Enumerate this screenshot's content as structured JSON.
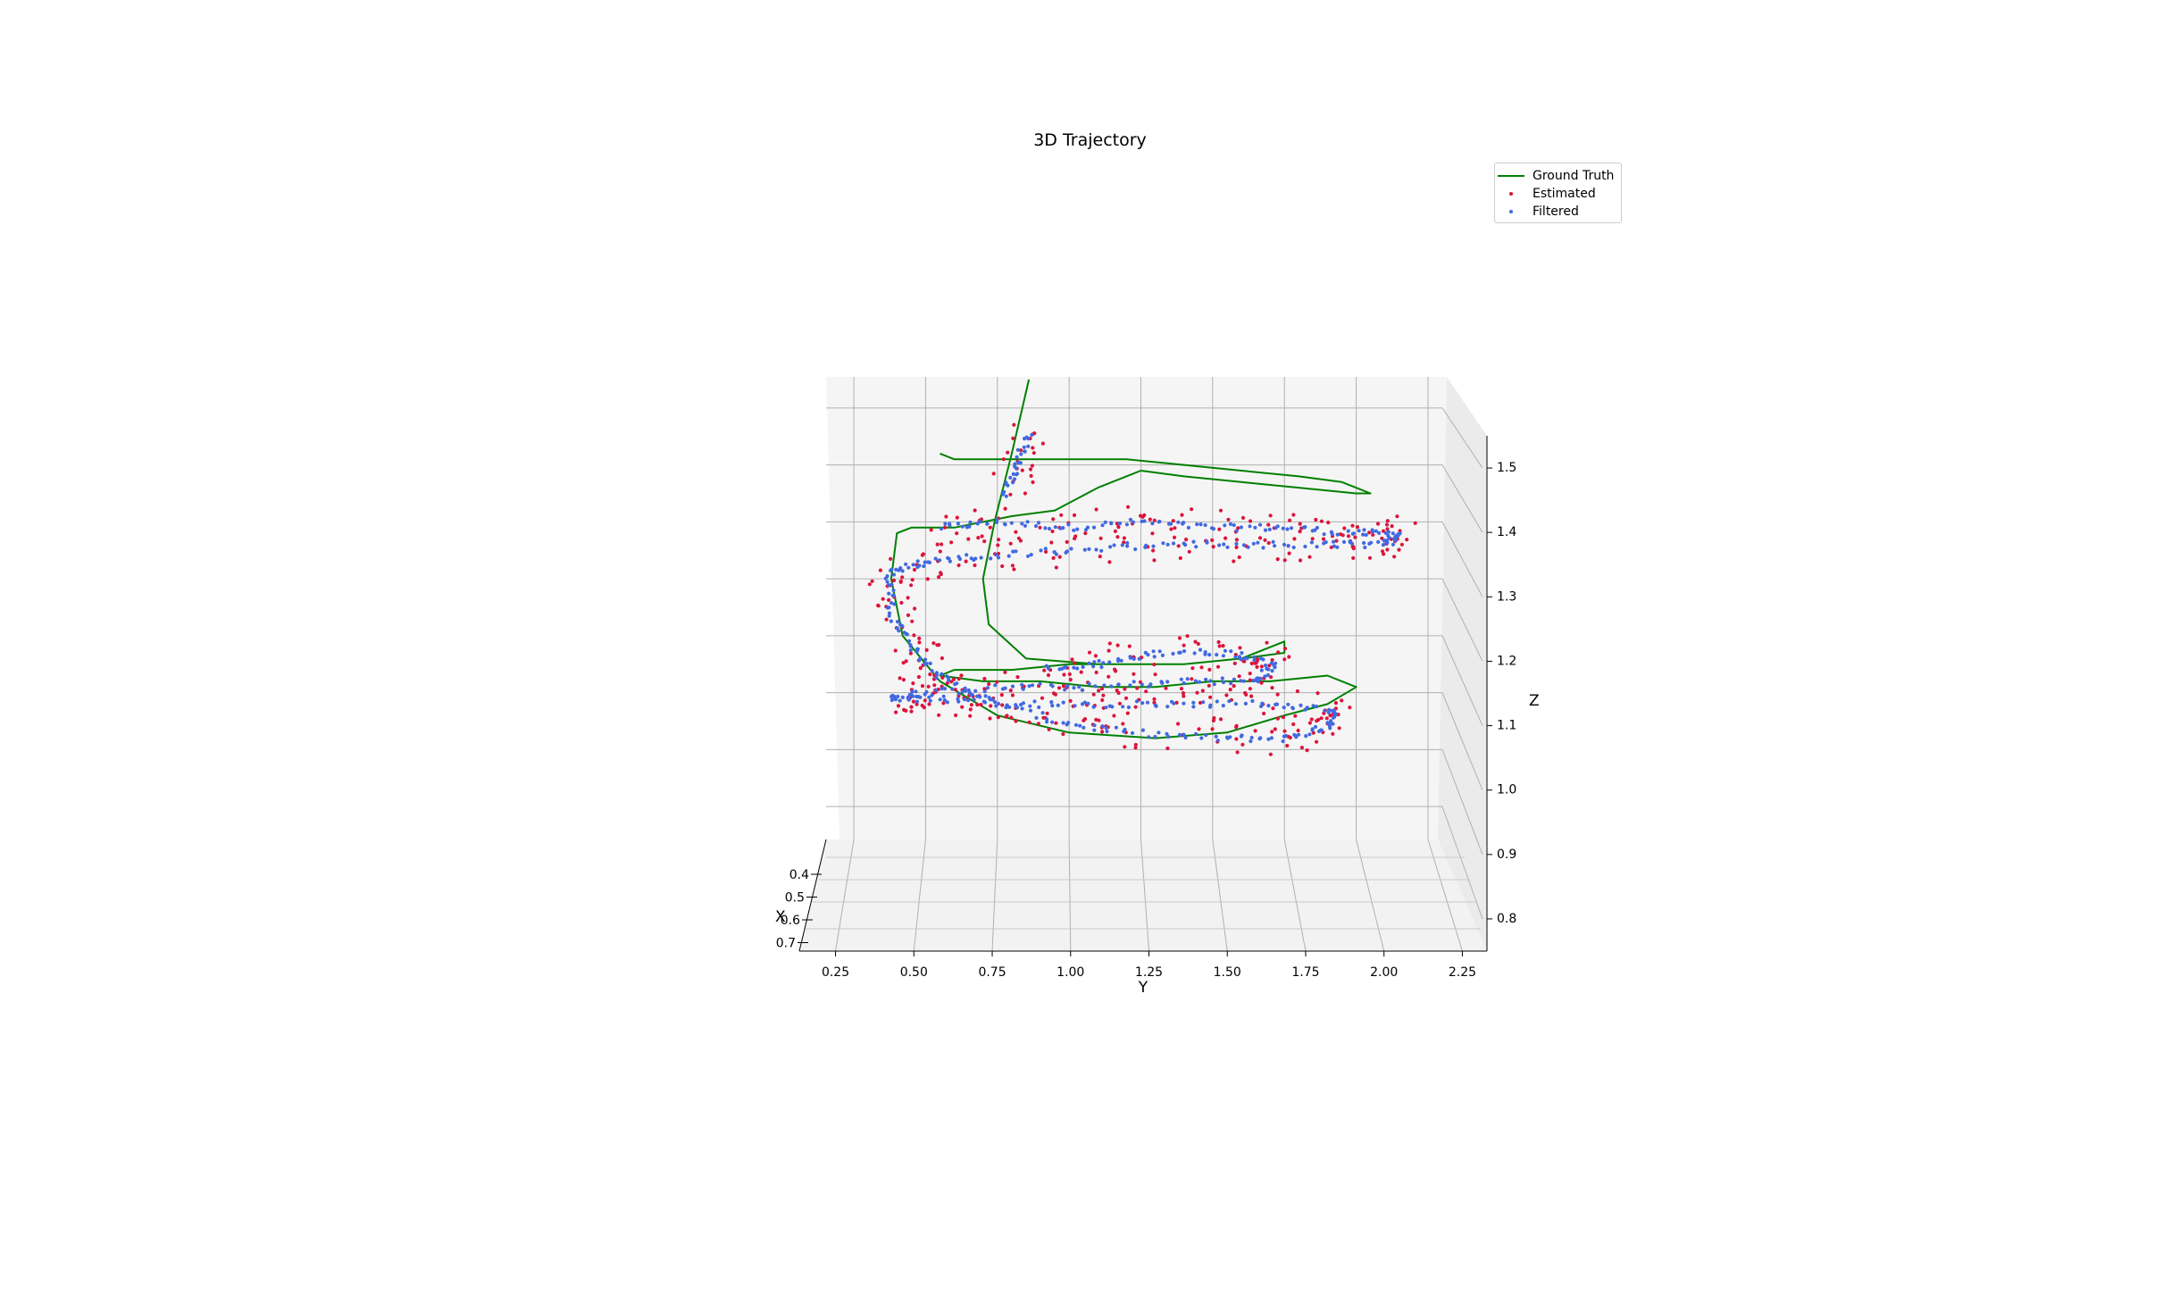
{
  "chart_data": {
    "type": "scatter",
    "projection": "3d",
    "title": "3D Trajectory",
    "xlabel": "X",
    "ylabel": "Y",
    "zlabel": "Z",
    "xlim": [
      0.35,
      0.75
    ],
    "ylim": [
      0.2,
      2.3
    ],
    "zlim": [
      0.75,
      1.55
    ],
    "x_ticks": [
      "0.4",
      "0.5",
      "0.6",
      "0.7"
    ],
    "y_ticks": [
      "0.25",
      "0.50",
      "0.75",
      "1.00",
      "1.25",
      "1.50",
      "1.75",
      "2.00",
      "2.25"
    ],
    "z_ticks": [
      "0.8",
      "0.9",
      "1.0",
      "1.1",
      "1.2",
      "1.3",
      "1.4",
      "1.5"
    ],
    "grid": true,
    "legend_position": "upper-right",
    "series": [
      {
        "name": "Ground Truth",
        "kind": "line",
        "color": "#008000",
        "points": [
          [
            0.5,
            0.55,
            1.42
          ],
          [
            0.5,
            0.6,
            1.41
          ],
          [
            0.5,
            0.8,
            1.41
          ],
          [
            0.5,
            1.0,
            1.41
          ],
          [
            0.5,
            1.2,
            1.41
          ],
          [
            0.5,
            1.4,
            1.4
          ],
          [
            0.5,
            1.6,
            1.39
          ],
          [
            0.5,
            1.8,
            1.38
          ],
          [
            0.5,
            1.95,
            1.37
          ],
          [
            0.5,
            2.05,
            1.35
          ],
          [
            0.5,
            2.0,
            1.35
          ],
          [
            0.5,
            1.8,
            1.36
          ],
          [
            0.5,
            1.6,
            1.37
          ],
          [
            0.5,
            1.4,
            1.38
          ],
          [
            0.5,
            1.25,
            1.39
          ],
          [
            0.5,
            1.1,
            1.36
          ],
          [
            0.5,
            0.95,
            1.32
          ],
          [
            0.5,
            0.8,
            1.31
          ],
          [
            0.5,
            0.6,
            1.29
          ],
          [
            0.5,
            0.45,
            1.29
          ],
          [
            0.5,
            0.4,
            1.28
          ],
          [
            0.5,
            0.38,
            1.2
          ],
          [
            0.5,
            0.42,
            1.1
          ],
          [
            0.5,
            0.55,
            1.02
          ],
          [
            0.5,
            0.75,
            0.96
          ],
          [
            0.5,
            1.0,
            0.93
          ],
          [
            0.5,
            1.3,
            0.92
          ],
          [
            0.5,
            1.55,
            0.93
          ],
          [
            0.5,
            1.75,
            0.96
          ],
          [
            0.5,
            1.9,
            0.98
          ],
          [
            0.5,
            2.0,
            1.01
          ],
          [
            0.5,
            1.9,
            1.03
          ],
          [
            0.5,
            1.7,
            1.02
          ],
          [
            0.5,
            1.5,
            1.02
          ],
          [
            0.5,
            1.3,
            1.01
          ],
          [
            0.5,
            1.1,
            1.01
          ],
          [
            0.5,
            0.9,
            1.02
          ],
          [
            0.5,
            0.7,
            1.02
          ],
          [
            0.5,
            0.55,
            1.03
          ],
          [
            0.5,
            0.6,
            1.04
          ],
          [
            0.5,
            0.8,
            1.04
          ],
          [
            0.5,
            1.0,
            1.05
          ],
          [
            0.5,
            1.2,
            1.05
          ],
          [
            0.5,
            1.4,
            1.05
          ],
          [
            0.5,
            1.6,
            1.06
          ],
          [
            0.5,
            1.75,
            1.07
          ],
          [
            0.5,
            1.75,
            1.09
          ],
          [
            0.5,
            1.6,
            1.06
          ],
          [
            0.5,
            1.4,
            1.05
          ],
          [
            0.5,
            1.1,
            1.05
          ],
          [
            0.5,
            0.85,
            1.06
          ],
          [
            0.5,
            0.72,
            1.12
          ],
          [
            0.5,
            0.7,
            1.2
          ],
          [
            0.5,
            0.74,
            1.3
          ],
          [
            0.5,
            0.8,
            1.42
          ],
          [
            0.5,
            0.86,
            1.55
          ]
        ]
      },
      {
        "name": "Estimated",
        "kind": "scatter",
        "color": "#dc143c"
      },
      {
        "name": "Filtered",
        "kind": "scatter",
        "color": "#4169e1"
      }
    ],
    "scatter_paths": [
      [
        [
          0.5,
          0.55,
          1.29
        ],
        [
          0.5,
          0.75,
          1.3
        ],
        [
          0.5,
          1.0,
          1.29
        ],
        [
          0.5,
          1.25,
          1.3
        ],
        [
          0.5,
          1.5,
          1.29
        ],
        [
          0.5,
          1.75,
          1.29
        ],
        [
          0.5,
          2.0,
          1.28
        ],
        [
          0.5,
          2.15,
          1.28
        ],
        [
          0.5,
          2.1,
          1.26
        ],
        [
          0.5,
          1.9,
          1.26
        ],
        [
          0.5,
          1.6,
          1.26
        ],
        [
          0.5,
          1.3,
          1.26
        ],
        [
          0.5,
          1.0,
          1.25
        ],
        [
          0.5,
          0.7,
          1.24
        ],
        [
          0.5,
          0.5,
          1.23
        ],
        [
          0.5,
          0.37,
          1.21
        ],
        [
          0.5,
          0.38,
          1.14
        ],
        [
          0.5,
          0.45,
          1.08
        ],
        [
          0.5,
          0.55,
          1.03
        ],
        [
          0.5,
          0.7,
          0.99
        ],
        [
          0.5,
          0.95,
          0.95
        ],
        [
          0.5,
          1.2,
          0.93
        ],
        [
          0.5,
          1.5,
          0.92
        ],
        [
          0.5,
          1.75,
          0.92
        ],
        [
          0.5,
          1.9,
          0.94
        ],
        [
          0.5,
          1.92,
          0.97
        ],
        [
          0.5,
          1.7,
          0.98
        ],
        [
          0.5,
          1.4,
          0.98
        ],
        [
          0.5,
          1.1,
          0.98
        ],
        [
          0.5,
          0.8,
          0.98
        ],
        [
          0.5,
          0.55,
          0.99
        ],
        [
          0.5,
          0.38,
          0.99
        ],
        [
          0.5,
          0.5,
          1.0
        ],
        [
          0.5,
          0.8,
          1.01
        ],
        [
          0.5,
          1.1,
          1.01
        ],
        [
          0.5,
          1.4,
          1.02
        ],
        [
          0.5,
          1.65,
          1.02
        ],
        [
          0.5,
          1.72,
          1.05
        ],
        [
          0.5,
          1.55,
          1.07
        ],
        [
          0.5,
          1.3,
          1.07
        ],
        [
          0.5,
          1.1,
          1.05
        ],
        [
          0.5,
          0.9,
          1.04
        ]
      ],
      [
        [
          0.5,
          0.78,
          1.35
        ],
        [
          0.5,
          0.82,
          1.4
        ],
        [
          0.5,
          0.86,
          1.46
        ]
      ]
    ]
  }
}
